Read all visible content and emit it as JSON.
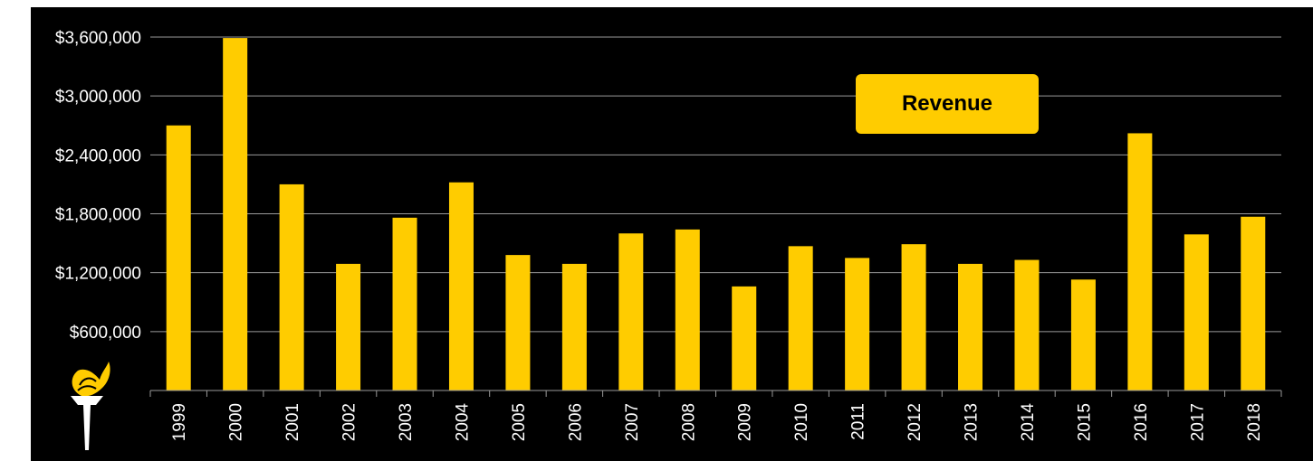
{
  "colors": {
    "background": "#000000",
    "bar": "#FFCC00",
    "gridline": "#9a9a9a",
    "text": "#ffffff",
    "legend_text": "#000000"
  },
  "logo": {
    "icon": "torch-logo-icon"
  },
  "chart_data": {
    "type": "bar",
    "title": "",
    "xlabel": "",
    "ylabel": "",
    "legend": "Revenue",
    "legend_placement": "top-right",
    "grid": true,
    "ylim": [
      0,
      3600000
    ],
    "yticks": [
      600000,
      1200000,
      1800000,
      2400000,
      3000000,
      3600000
    ],
    "ytick_labels": [
      "$600,000",
      "$1,200,000",
      "$1,800,000",
      "$2,400,000",
      "$3,000,000",
      "$3,600,000"
    ],
    "categories": [
      "1999",
      "2000",
      "2001",
      "2002",
      "2003",
      "2004",
      "2005",
      "2006",
      "2007",
      "2008",
      "2009",
      "2010",
      "2011",
      "2012",
      "2013",
      "2014",
      "2015",
      "2016",
      "2017",
      "2018"
    ],
    "series": [
      {
        "name": "Revenue",
        "values": [
          2700000,
          3590000,
          2100000,
          1290000,
          1760000,
          2120000,
          1380000,
          1290000,
          1600000,
          1640000,
          1060000,
          1470000,
          1350000,
          1490000,
          1290000,
          1330000,
          1130000,
          2620000,
          1590000,
          1770000
        ]
      }
    ]
  }
}
